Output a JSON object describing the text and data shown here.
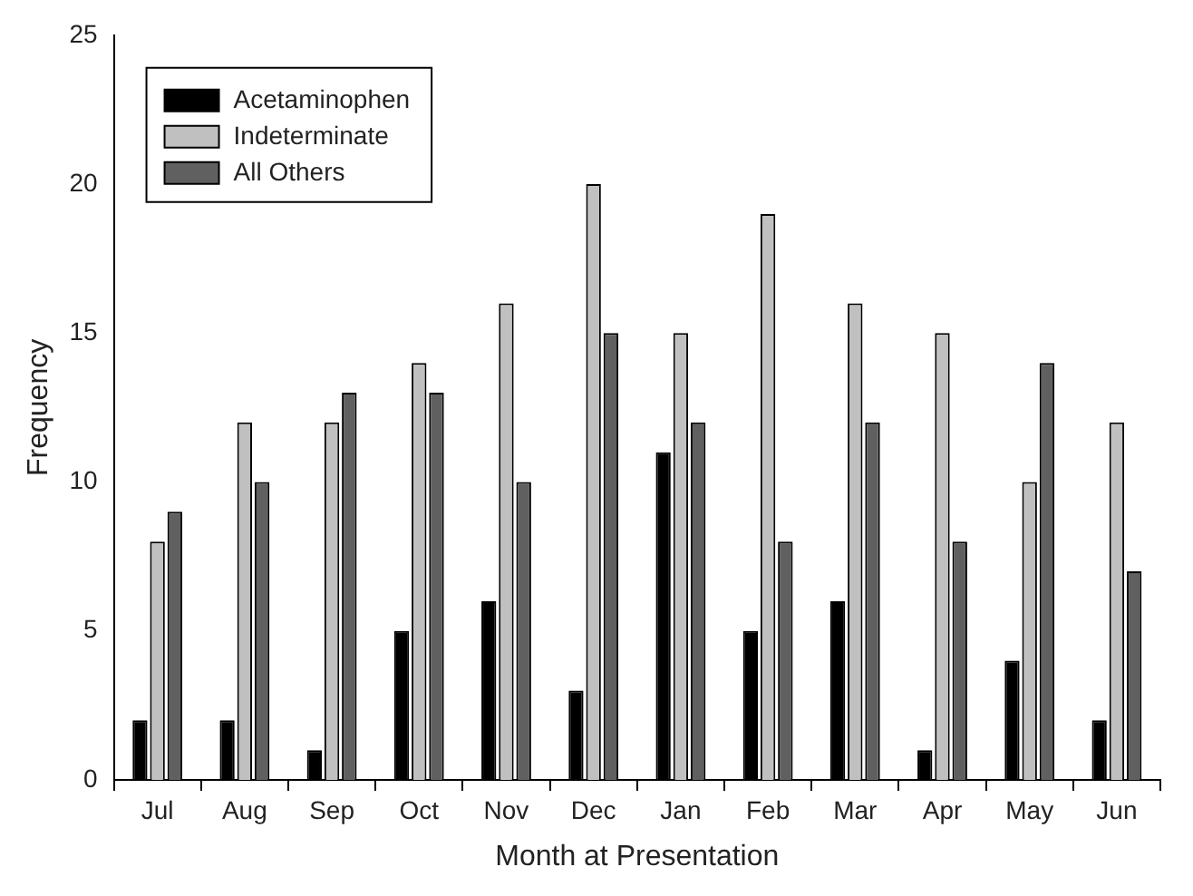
{
  "chart_data": {
    "type": "bar",
    "xlabel": "Month at Presentation",
    "ylabel": "Frequency",
    "categories": [
      "Jul",
      "Aug",
      "Sep",
      "Oct",
      "Nov",
      "Dec",
      "Jan",
      "Feb",
      "Mar",
      "Apr",
      "May",
      "Jun"
    ],
    "series": [
      {
        "name": "Acetaminophen",
        "color": "#000000",
        "values": [
          2,
          2,
          1,
          5,
          6,
          3,
          11,
          5,
          6,
          1,
          4,
          2
        ]
      },
      {
        "name": "Indeterminate",
        "color": "#c0c0c0",
        "values": [
          8,
          12,
          12,
          14,
          16,
          20,
          15,
          19,
          16,
          15,
          10,
          12
        ]
      },
      {
        "name": "All Others",
        "color": "#606060",
        "values": [
          9,
          10,
          13,
          13,
          10,
          15,
          12,
          8,
          12,
          8,
          14,
          7
        ]
      }
    ],
    "ylim": [
      0,
      25
    ],
    "yticks": [
      0,
      5,
      10,
      15,
      20,
      25
    ],
    "grid": false,
    "legend": "top left"
  }
}
